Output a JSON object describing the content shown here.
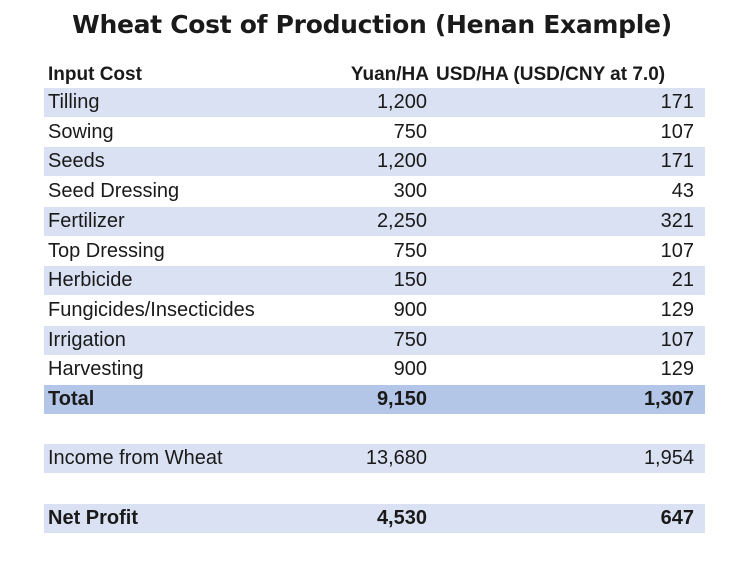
{
  "title": "Wheat Cost of Production (Henan Example)",
  "headers": [
    "Input Cost",
    "Yuan/HA",
    "USD/HA (USD/CNY at 7.0)"
  ],
  "rows": [
    {
      "label": "Tilling",
      "yuan": "1,200",
      "usd": "171"
    },
    {
      "label": "Sowing",
      "yuan": "750",
      "usd": "107"
    },
    {
      "label": "Seeds",
      "yuan": "1,200",
      "usd": "171"
    },
    {
      "label": "Seed Dressing",
      "yuan": "300",
      "usd": "43"
    },
    {
      "label": "Fertilizer",
      "yuan": "2,250",
      "usd": "321"
    },
    {
      "label": "Top Dressing",
      "yuan": "750",
      "usd": "107"
    },
    {
      "label": "Herbicide",
      "yuan": "150",
      "usd": "21"
    },
    {
      "label": "Fungicides/Insecticides",
      "yuan": "900",
      "usd": "129"
    },
    {
      "label": "Irrigation",
      "yuan": "750",
      "usd": "107"
    },
    {
      "label": "Harvesting",
      "yuan": "900",
      "usd": "129"
    }
  ],
  "total": {
    "label": "Total",
    "yuan": "9,150",
    "usd": "1,307"
  },
  "income": {
    "label": "Income from Wheat",
    "yuan": "13,680",
    "usd": "1,954"
  },
  "net_profit": {
    "label": "Net Profit",
    "yuan": "4,530",
    "usd": "647"
  },
  "colors": {
    "band": "#d9e1f2",
    "total": "#b4c6e7"
  }
}
